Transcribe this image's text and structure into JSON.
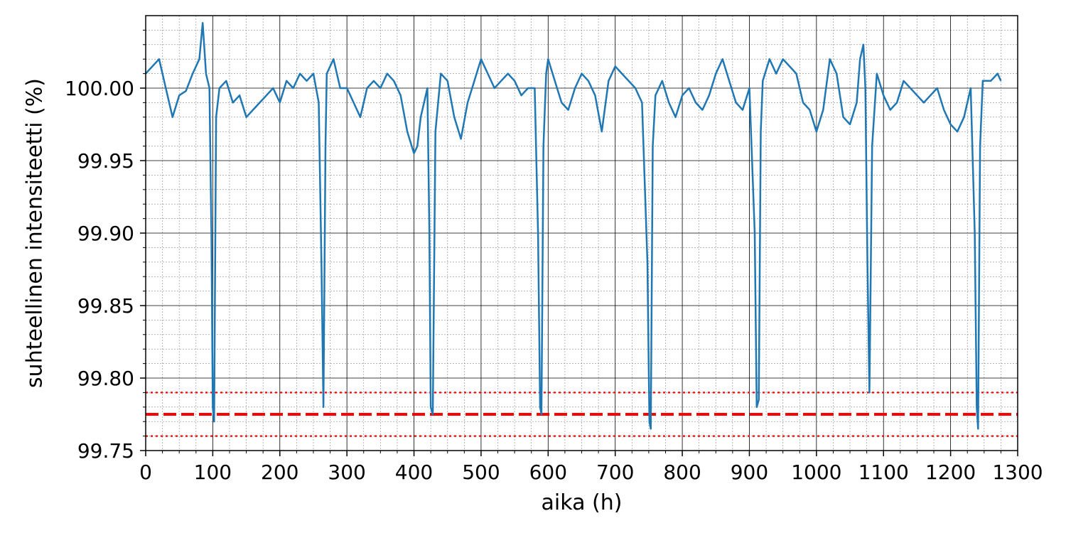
{
  "chart_data": {
    "type": "line",
    "title": "",
    "xlabel": "aika (h)",
    "ylabel": "suhteellinen intensiteetti (%)",
    "xlim": [
      0,
      1300
    ],
    "ylim": [
      99.75,
      100.05
    ],
    "xticks": [
      "0",
      "100",
      "200",
      "300",
      "400",
      "500",
      "600",
      "700",
      "800",
      "900",
      "1000",
      "1100",
      "1200",
      "1300"
    ],
    "yticks": [
      "99.75",
      "99.80",
      "99.85",
      "99.90",
      "99.95",
      "100.00"
    ],
    "grid": {
      "major": true,
      "minor": true
    },
    "colors": {
      "series": "#1f77b4",
      "reference": "#ff0000"
    },
    "series": [
      {
        "x": [
          0,
          10,
          20,
          30,
          40,
          50,
          60,
          70,
          80,
          85,
          90,
          95,
          98,
          100,
          102,
          105,
          110,
          120,
          130,
          140,
          150,
          160,
          170,
          180,
          190,
          200,
          210,
          220,
          230,
          240,
          250,
          258,
          262,
          265,
          268,
          270,
          280,
          290,
          300,
          310,
          320,
          330,
          340,
          350,
          360,
          370,
          380,
          390,
          400,
          405,
          410,
          420,
          423,
          425,
          428,
          432,
          440,
          450,
          460,
          470,
          480,
          490,
          500,
          510,
          520,
          530,
          540,
          550,
          560,
          570,
          580,
          585,
          588,
          590,
          593,
          597,
          600,
          610,
          620,
          630,
          640,
          650,
          660,
          670,
          680,
          690,
          700,
          710,
          720,
          730,
          740,
          748,
          751,
          753,
          756,
          760,
          770,
          780,
          790,
          800,
          810,
          820,
          830,
          840,
          850,
          860,
          870,
          880,
          890,
          900,
          908,
          911,
          914,
          917,
          920,
          930,
          940,
          950,
          960,
          970,
          980,
          990,
          1000,
          1010,
          1020,
          1030,
          1040,
          1050,
          1060,
          1065,
          1070,
          1073,
          1076,
          1079,
          1083,
          1090,
          1100,
          1110,
          1120,
          1130,
          1140,
          1150,
          1160,
          1170,
          1180,
          1190,
          1200,
          1210,
          1220,
          1230,
          1236,
          1239,
          1241,
          1244,
          1248,
          1260,
          1270,
          1275
        ],
        "y": [
          100.01,
          100.015,
          100.02,
          100.0,
          99.98,
          99.995,
          99.998,
          100.01,
          100.02,
          100.045,
          100.01,
          100.0,
          99.9,
          99.78,
          99.77,
          99.98,
          100.0,
          100.005,
          99.99,
          99.995,
          99.98,
          99.985,
          99.99,
          99.995,
          100.0,
          99.99,
          100.005,
          100.0,
          100.01,
          100.005,
          100.01,
          99.99,
          99.88,
          99.78,
          99.96,
          100.01,
          100.02,
          100.0,
          100.0,
          99.99,
          99.98,
          100.0,
          100.005,
          100.0,
          100.01,
          100.005,
          99.995,
          99.97,
          99.955,
          99.96,
          99.98,
          100.0,
          99.9,
          99.78,
          99.775,
          99.97,
          100.01,
          100.005,
          99.98,
          99.965,
          99.99,
          100.005,
          100.02,
          100.01,
          100.0,
          100.005,
          100.01,
          100.005,
          99.995,
          100.0,
          100.0,
          99.9,
          99.78,
          99.775,
          99.96,
          100.01,
          100.02,
          100.005,
          99.99,
          99.985,
          100.0,
          100.01,
          100.005,
          99.995,
          99.97,
          100.005,
          100.015,
          100.01,
          100.005,
          100.0,
          99.99,
          99.88,
          99.77,
          99.765,
          99.96,
          99.995,
          100.005,
          99.99,
          99.98,
          99.995,
          100.0,
          99.99,
          99.985,
          99.995,
          100.01,
          100.02,
          100.005,
          99.99,
          99.985,
          100.0,
          99.9,
          99.78,
          99.785,
          99.97,
          100.005,
          100.02,
          100.01,
          100.02,
          100.015,
          100.01,
          99.99,
          99.985,
          99.97,
          99.985,
          100.02,
          100.01,
          99.98,
          99.975,
          99.99,
          100.02,
          100.03,
          100.0,
          99.88,
          99.79,
          99.96,
          100.01,
          99.995,
          99.985,
          99.99,
          100.005,
          100.0,
          99.995,
          99.99,
          99.995,
          100.0,
          99.985,
          99.975,
          99.97,
          99.98,
          100.0,
          99.9,
          99.78,
          99.765,
          99.96,
          100.005,
          100.005,
          100.01,
          100.005
        ]
      }
    ],
    "reference_lines": [
      {
        "y": 99.775,
        "style": "dashed"
      },
      {
        "y": 99.79,
        "style": "dotted"
      },
      {
        "y": 99.76,
        "style": "dotted"
      }
    ]
  }
}
